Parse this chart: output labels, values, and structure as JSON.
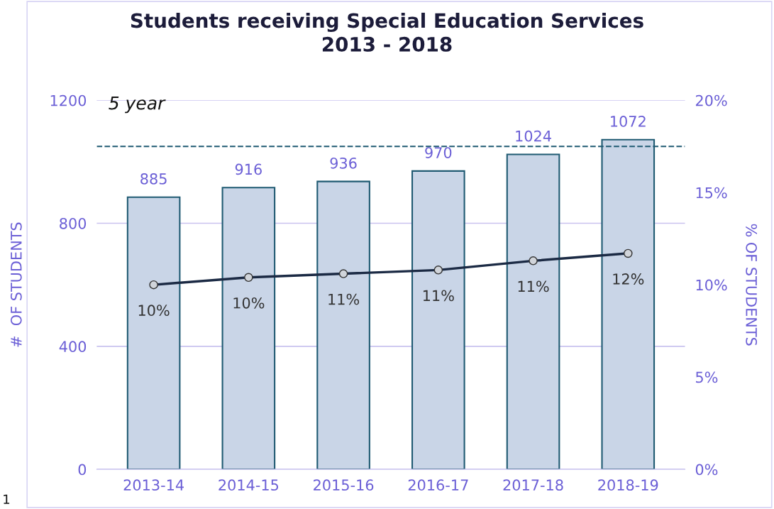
{
  "chart_data": {
    "type": "bar",
    "title": "Students receiving Special Education Services\n2013 - 2018",
    "categories": [
      "2013-14",
      "2014-15",
      "2015-16",
      "2016-17",
      "2017-18",
      "2018-19"
    ],
    "series": [
      {
        "color": "#c9d5e7",
        "values": [
          885,
          916,
          936,
          970,
          1024,
          1072
        ],
        "data_labels": true
      },
      {
        "type": "line",
        "axis": "y2",
        "color": "#1b2a44",
        "values": [
          10.0,
          10.4,
          10.6,
          10.8,
          11.3,
          11.7
        ],
        "value_labels": [
          "10%",
          "10%",
          "11%",
          "11%",
          "11%",
          "12%"
        ]
      }
    ],
    "ylabel": "#  OF STUDENTS",
    "y2label": "% OF STUDENTS",
    "ylim": [
      0,
      1200
    ],
    "yticks": [
      0,
      400,
      800,
      1200
    ],
    "y2lim": [
      0,
      20
    ],
    "y2ticks": [
      {
        "value": 0,
        "label": "0%"
      },
      {
        "value": 5,
        "label": "5%"
      },
      {
        "value": 10,
        "label": "10%"
      },
      {
        "value": 15,
        "label": "15%"
      },
      {
        "value": 20,
        "label": "20%"
      }
    ],
    "ref_lines": [
      {
        "axis": "y",
        "value": 1050,
        "color": "#1f5a72",
        "line_style": "dashed"
      }
    ],
    "annotations": [
      "5 year",
      "1"
    ],
    "grid": "y",
    "marker": "circle",
    "legend": false
  }
}
